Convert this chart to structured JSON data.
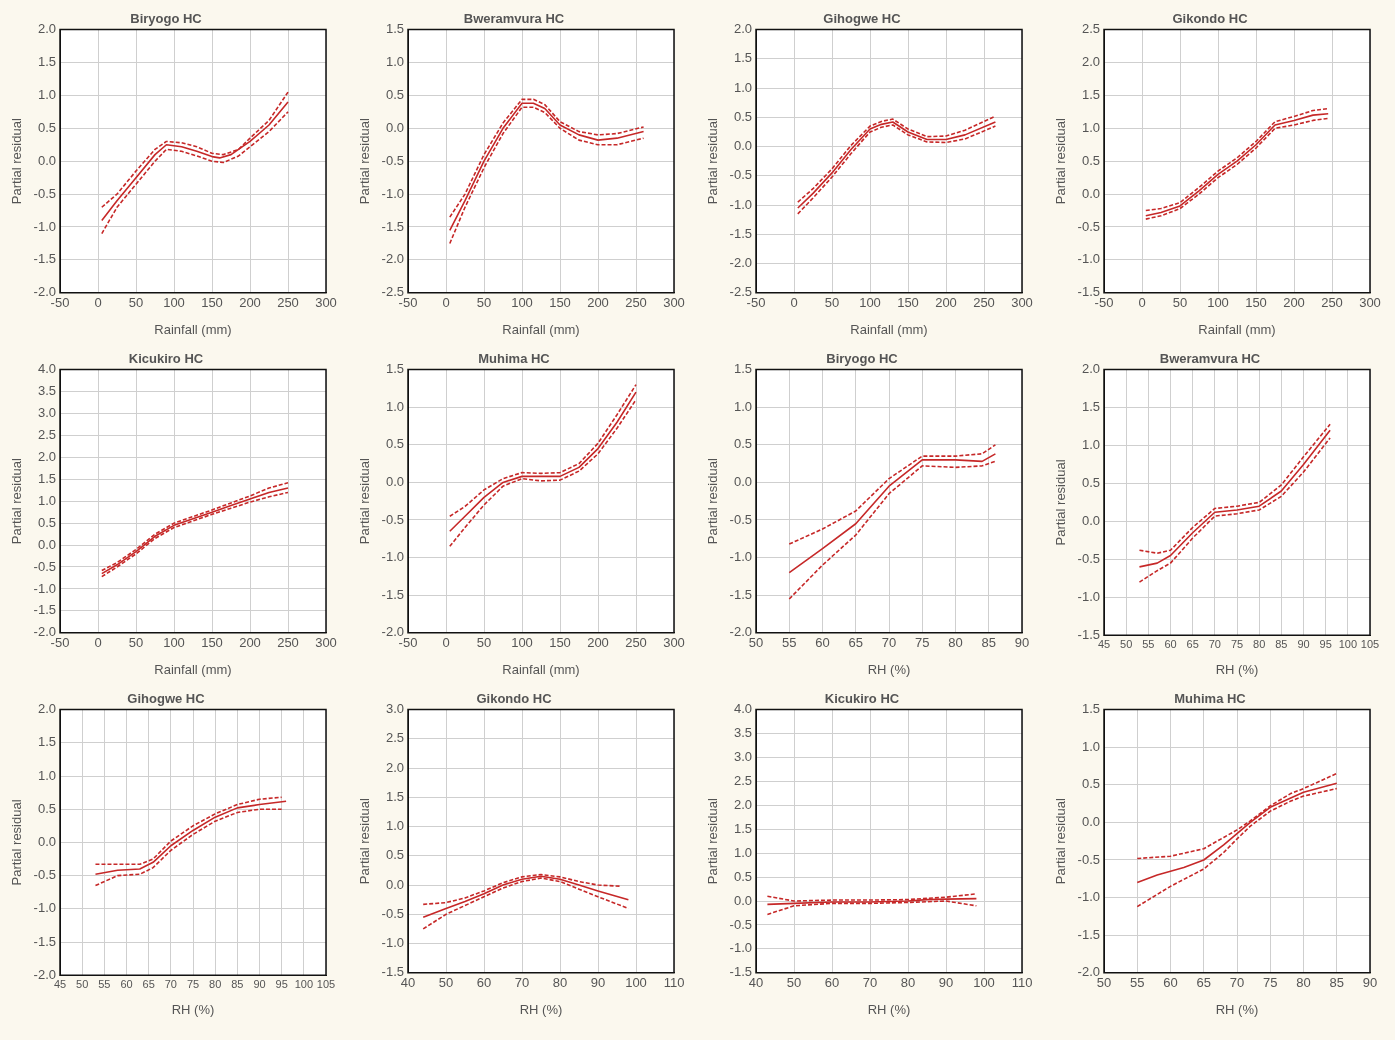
{
  "chart_data": [
    {
      "type": "line",
      "title": "Biryogo HC",
      "xlabel": "Rainfall (mm)",
      "ylabel": "Partial residual",
      "xlim": [
        -50,
        300
      ],
      "xticks": [
        -50,
        0,
        50,
        100,
        150,
        200,
        250,
        300
      ],
      "ylim": [
        -2,
        2
      ],
      "yticks": [
        {
          "value": -2,
          "label": "-2.0"
        },
        {
          "value": -1.5,
          "label": "-1.5"
        },
        {
          "value": -1,
          "label": "-1.0"
        },
        {
          "value": -0.5,
          "label": "-0.5"
        },
        {
          "value": 0,
          "label": "0.0"
        },
        {
          "value": 0.5,
          "label": "0.5"
        },
        {
          "value": 1,
          "label": "1.0"
        },
        {
          "value": 1.5,
          "label": "1.5"
        },
        {
          "value": 2,
          "label": "2.0"
        }
      ],
      "grid": true,
      "marker": "none",
      "series": [
        {
          "color": "#c62828",
          "line_style": "solid",
          "x": [
            5,
            25,
            50,
            75,
            90,
            110,
            130,
            150,
            160,
            175,
            200,
            225,
            250
          ],
          "values": [
            -0.9,
            -0.6,
            -0.25,
            0.1,
            0.25,
            0.22,
            0.15,
            0.07,
            0.05,
            0.1,
            0.3,
            0.55,
            0.9
          ]
        },
        {
          "color": "#c62828",
          "line_style": "dashed",
          "x": [
            5,
            25,
            50,
            75,
            90,
            110,
            130,
            150,
            165,
            185,
            200,
            225,
            250
          ],
          "values": [
            -1.1,
            -0.7,
            -0.35,
            0,
            0.18,
            0.15,
            0.08,
            0,
            -0.02,
            0.08,
            0.22,
            0.45,
            0.75
          ]
        },
        {
          "color": "#c62828",
          "line_style": "dashed",
          "x": [
            5,
            25,
            50,
            75,
            90,
            110,
            130,
            150,
            165,
            185,
            200,
            225,
            250
          ],
          "values": [
            -0.7,
            -0.5,
            -0.15,
            0.18,
            0.3,
            0.28,
            0.22,
            0.12,
            0.1,
            0.18,
            0.35,
            0.62,
            1.05
          ]
        }
      ]
    },
    {
      "type": "line",
      "title": "Bweramvura HC",
      "xlabel": "Rainfall (mm)",
      "ylabel": "Partial residual",
      "xlim": [
        -50,
        300
      ],
      "xticks": [
        -50,
        0,
        50,
        100,
        150,
        200,
        250,
        300
      ],
      "ylim": [
        -2.5,
        1.5
      ],
      "yticks": [
        {
          "value": -2.5,
          "label": "-2.5"
        },
        {
          "value": -2,
          "label": "-2.0"
        },
        {
          "value": -1.5,
          "label": "-1.5"
        },
        {
          "value": -1,
          "label": "-1.0"
        },
        {
          "value": -0.5,
          "label": "-0.5"
        },
        {
          "value": 0,
          "label": "0.0"
        },
        {
          "value": 0.5,
          "label": "0.5"
        },
        {
          "value": 1,
          "label": "1.0"
        },
        {
          "value": 1.5,
          "label": "1.5"
        }
      ],
      "grid": true,
      "marker": "none",
      "series": [
        {
          "color": "#c62828",
          "line_style": "solid",
          "x": [
            5,
            25,
            50,
            75,
            100,
            115,
            130,
            150,
            175,
            200,
            225,
            260
          ],
          "values": [
            -1.55,
            -1.1,
            -0.5,
            0,
            0.38,
            0.38,
            0.3,
            0.05,
            -0.1,
            -0.18,
            -0.15,
            -0.05
          ]
        },
        {
          "color": "#c62828",
          "line_style": "dashed",
          "x": [
            5,
            25,
            50,
            75,
            100,
            115,
            130,
            150,
            175,
            200,
            225,
            260
          ],
          "values": [
            -1.75,
            -1.2,
            -0.6,
            -0.08,
            0.32,
            0.32,
            0.24,
            0,
            -0.18,
            -0.25,
            -0.25,
            -0.15
          ]
        },
        {
          "color": "#c62828",
          "line_style": "dashed",
          "x": [
            5,
            25,
            50,
            75,
            100,
            115,
            130,
            150,
            175,
            200,
            225,
            260
          ],
          "values": [
            -1.35,
            -1,
            -0.4,
            0.08,
            0.44,
            0.44,
            0.36,
            0.1,
            -0.05,
            -0.1,
            -0.08,
            0.02
          ]
        }
      ]
    },
    {
      "type": "line",
      "title": "Gihogwe HC",
      "xlabel": "Rainfall (mm)",
      "ylabel": "Partial residual",
      "xlim": [
        -50,
        300
      ],
      "xticks": [
        -50,
        0,
        50,
        100,
        150,
        200,
        250,
        300
      ],
      "ylim": [
        -2.5,
        2
      ],
      "yticks": [
        {
          "value": -2.5,
          "label": "-2.5"
        },
        {
          "value": -2,
          "label": "-2.0"
        },
        {
          "value": -1.5,
          "label": "-1.5"
        },
        {
          "value": -1,
          "label": "-1.0"
        },
        {
          "value": -0.5,
          "label": "-0.5"
        },
        {
          "value": 0,
          "label": "0.0"
        },
        {
          "value": 0.5,
          "label": "0.5"
        },
        {
          "value": 1,
          "label": "1.0"
        },
        {
          "value": 1.5,
          "label": "1.5"
        },
        {
          "value": 2,
          "label": "2.0"
        }
      ],
      "grid": true,
      "marker": "none",
      "series": [
        {
          "color": "#c62828",
          "line_style": "solid",
          "x": [
            5,
            25,
            50,
            75,
            100,
            115,
            130,
            150,
            175,
            200,
            225,
            265
          ],
          "values": [
            -1.05,
            -0.8,
            -0.45,
            -0.05,
            0.3,
            0.38,
            0.42,
            0.25,
            0.12,
            0.12,
            0.2,
            0.42
          ]
        },
        {
          "color": "#c62828",
          "line_style": "dashed",
          "x": [
            5,
            25,
            50,
            75,
            100,
            115,
            130,
            150,
            175,
            200,
            225,
            265
          ],
          "values": [
            -1.15,
            -0.88,
            -0.52,
            -0.12,
            0.25,
            0.33,
            0.37,
            0.2,
            0.08,
            0.07,
            0.13,
            0.35
          ]
        },
        {
          "color": "#c62828",
          "line_style": "dashed",
          "x": [
            5,
            25,
            50,
            75,
            100,
            115,
            130,
            150,
            175,
            200,
            225,
            265
          ],
          "values": [
            -0.95,
            -0.72,
            -0.38,
            0.02,
            0.35,
            0.43,
            0.47,
            0.3,
            0.17,
            0.18,
            0.28,
            0.52
          ]
        }
      ]
    },
    {
      "type": "line",
      "title": "Gikondo HC",
      "xlabel": "Rainfall (mm)",
      "ylabel": "Partial residual",
      "xlim": [
        -50,
        300
      ],
      "xticks": [
        -50,
        0,
        50,
        100,
        150,
        200,
        250,
        300
      ],
      "ylim": [
        -1.5,
        2.5
      ],
      "yticks": [
        {
          "value": -1.5,
          "label": "-1.5"
        },
        {
          "value": -1,
          "label": "-1.0"
        },
        {
          "value": -0.5,
          "label": "-0.5"
        },
        {
          "value": 0,
          "label": "0.0"
        },
        {
          "value": 0.5,
          "label": "0.5"
        },
        {
          "value": 1,
          "label": "1.0"
        },
        {
          "value": 1.5,
          "label": "1.5"
        },
        {
          "value": 2,
          "label": "2.0"
        },
        {
          "value": 2.5,
          "label": "2.5"
        }
      ],
      "grid": true,
      "marker": "none",
      "series": [
        {
          "color": "#c62828",
          "line_style": "solid",
          "x": [
            5,
            25,
            50,
            75,
            100,
            125,
            150,
            175,
            200,
            225,
            245
          ],
          "values": [
            -0.33,
            -0.28,
            -0.18,
            0.05,
            0.3,
            0.5,
            0.75,
            1.05,
            1.12,
            1.2,
            1.22
          ]
        },
        {
          "color": "#c62828",
          "line_style": "dashed",
          "x": [
            5,
            25,
            50,
            75,
            100,
            125,
            150,
            175,
            200,
            225,
            245
          ],
          "values": [
            -0.38,
            -0.33,
            -0.22,
            0,
            0.25,
            0.45,
            0.7,
            1,
            1.05,
            1.12,
            1.15
          ]
        },
        {
          "color": "#c62828",
          "line_style": "dashed",
          "x": [
            5,
            25,
            50,
            75,
            100,
            125,
            150,
            175,
            200,
            225,
            245
          ],
          "values": [
            -0.25,
            -0.22,
            -0.13,
            0.1,
            0.35,
            0.55,
            0.8,
            1.1,
            1.18,
            1.27,
            1.3
          ]
        }
      ]
    },
    {
      "type": "line",
      "title": "Kicukiro HC",
      "xlabel": "Rainfall (mm)",
      "ylabel": "Partial residual",
      "xlim": [
        -50,
        300
      ],
      "xticks": [
        -50,
        0,
        50,
        100,
        150,
        200,
        250,
        300
      ],
      "ylim": [
        -2,
        4
      ],
      "yticks": [
        {
          "value": -2,
          "label": "-2.0"
        },
        {
          "value": -1.5,
          "label": "-1.5"
        },
        {
          "value": -1,
          "label": "-1.0"
        },
        {
          "value": -0.5,
          "label": "-0.5"
        },
        {
          "value": 0,
          "label": "0.0"
        },
        {
          "value": 0.5,
          "label": "0.5"
        },
        {
          "value": 1,
          "label": "1.0"
        },
        {
          "value": 1.5,
          "label": "1.5"
        },
        {
          "value": 2,
          "label": "2.0"
        },
        {
          "value": 2.5,
          "label": "2.5"
        },
        {
          "value": 3,
          "label": "3.0"
        },
        {
          "value": 3.5,
          "label": "3.5"
        },
        {
          "value": 4,
          "label": "4.0"
        }
      ],
      "grid": true,
      "marker": "none",
      "series": [
        {
          "color": "#c62828",
          "line_style": "solid",
          "x": [
            5,
            25,
            50,
            75,
            100,
            125,
            150,
            175,
            200,
            225,
            250
          ],
          "values": [
            -0.65,
            -0.45,
            -0.15,
            0.2,
            0.45,
            0.6,
            0.75,
            0.9,
            1.05,
            1.2,
            1.3
          ]
        },
        {
          "color": "#c62828",
          "line_style": "dashed",
          "x": [
            5,
            25,
            50,
            75,
            100,
            125,
            150,
            175,
            200,
            225,
            250
          ],
          "values": [
            -0.72,
            -0.5,
            -0.2,
            0.15,
            0.4,
            0.55,
            0.7,
            0.84,
            0.98,
            1.1,
            1.2
          ]
        },
        {
          "color": "#c62828",
          "line_style": "dashed",
          "x": [
            5,
            25,
            50,
            75,
            100,
            125,
            150,
            175,
            200,
            225,
            250
          ],
          "values": [
            -0.58,
            -0.4,
            -0.1,
            0.25,
            0.5,
            0.65,
            0.8,
            0.96,
            1.12,
            1.3,
            1.42
          ]
        }
      ]
    },
    {
      "type": "line",
      "title": "Muhima HC",
      "xlabel": "Rainfall (mm)",
      "ylabel": "Partial residual",
      "xlim": [
        -50,
        300
      ],
      "xticks": [
        -50,
        0,
        50,
        100,
        150,
        200,
        250,
        300
      ],
      "ylim": [
        -2,
        1.5
      ],
      "yticks": [
        {
          "value": -2,
          "label": "-2.0"
        },
        {
          "value": -1.5,
          "label": "-1.5"
        },
        {
          "value": -1,
          "label": "-1.0"
        },
        {
          "value": -0.5,
          "label": "-0.5"
        },
        {
          "value": 0,
          "label": "0.0"
        },
        {
          "value": 0.5,
          "label": "0.5"
        },
        {
          "value": 1,
          "label": "1.0"
        },
        {
          "value": 1.5,
          "label": "1.5"
        }
      ],
      "grid": true,
      "marker": "none",
      "series": [
        {
          "color": "#c62828",
          "line_style": "solid",
          "x": [
            5,
            25,
            50,
            75,
            100,
            125,
            150,
            175,
            200,
            225,
            250
          ],
          "values": [
            -0.65,
            -0.45,
            -0.2,
            0,
            0.08,
            0.08,
            0.08,
            0.2,
            0.45,
            0.8,
            1.2
          ]
        },
        {
          "color": "#c62828",
          "line_style": "dashed",
          "x": [
            5,
            25,
            50,
            75,
            100,
            125,
            150,
            175,
            200,
            225,
            250
          ],
          "values": [
            -0.85,
            -0.6,
            -0.3,
            -0.05,
            0.05,
            0.02,
            0.03,
            0.15,
            0.38,
            0.72,
            1.1
          ]
        },
        {
          "color": "#c62828",
          "line_style": "dashed",
          "x": [
            5,
            25,
            50,
            75,
            100,
            125,
            150,
            175,
            200,
            225,
            250
          ],
          "values": [
            -0.45,
            -0.32,
            -0.1,
            0.05,
            0.13,
            0.12,
            0.13,
            0.25,
            0.52,
            0.9,
            1.3
          ]
        }
      ]
    },
    {
      "type": "line",
      "title": "Biryogo HC",
      "xlabel": "RH (%)",
      "ylabel": "Partial residual",
      "xlim": [
        50,
        90
      ],
      "xticks": [
        50,
        55,
        60,
        65,
        70,
        75,
        80,
        85,
        90
      ],
      "ylim": [
        -2,
        1.5
      ],
      "yticks": [
        {
          "value": -2,
          "label": "-2.0"
        },
        {
          "value": -1.5,
          "label": "-1.5"
        },
        {
          "value": -1,
          "label": "-1.0"
        },
        {
          "value": -0.5,
          "label": "-0.5"
        },
        {
          "value": 0,
          "label": "0.0"
        },
        {
          "value": 0.5,
          "label": "0.5"
        },
        {
          "value": 1,
          "label": "1.0"
        },
        {
          "value": 1.5,
          "label": "1.5"
        }
      ],
      "grid": true,
      "marker": "none",
      "series": [
        {
          "color": "#c62828",
          "line_style": "solid",
          "x": [
            55,
            60,
            65,
            70,
            75,
            80,
            84,
            86
          ],
          "values": [
            -1.2,
            -0.88,
            -0.55,
            -0.05,
            0.3,
            0.3,
            0.28,
            0.38
          ]
        },
        {
          "color": "#c62828",
          "line_style": "dashed",
          "x": [
            55,
            60,
            65,
            70,
            75,
            80,
            84,
            86
          ],
          "values": [
            -1.55,
            -1.1,
            -0.7,
            -0.15,
            0.22,
            0.2,
            0.22,
            0.28
          ]
        },
        {
          "color": "#c62828",
          "line_style": "dashed",
          "x": [
            55,
            60,
            65,
            70,
            75,
            80,
            84,
            86
          ],
          "values": [
            -0.82,
            -0.62,
            -0.38,
            0.05,
            0.35,
            0.35,
            0.38,
            0.5
          ]
        }
      ]
    },
    {
      "type": "line",
      "title": "Bweramvura HC",
      "xlabel": "RH (%)",
      "ylabel": "Partial residual",
      "xlim": [
        45,
        105
      ],
      "xticks": [
        45,
        50,
        55,
        60,
        65,
        70,
        75,
        80,
        85,
        90,
        95,
        100,
        105
      ],
      "ylim": [
        -1.5,
        2
      ],
      "yticks": [
        {
          "value": -1.5,
          "label": "-1.5"
        },
        {
          "value": -1,
          "label": "-1.0"
        },
        {
          "value": -0.5,
          "label": "-0.5"
        },
        {
          "value": 0,
          "label": "0.0"
        },
        {
          "value": 0.5,
          "label": "0.5"
        },
        {
          "value": 1,
          "label": "1.0"
        },
        {
          "value": 1.5,
          "label": "1.5"
        },
        {
          "value": 2,
          "label": "2.0"
        }
      ],
      "grid": true,
      "marker": "none",
      "series": [
        {
          "color": "#c62828",
          "line_style": "solid",
          "x": [
            53,
            57,
            60,
            65,
            70,
            75,
            80,
            85,
            90,
            96
          ],
          "values": [
            -0.6,
            -0.55,
            -0.45,
            -0.15,
            0.12,
            0.15,
            0.2,
            0.4,
            0.75,
            1.2
          ]
        },
        {
          "color": "#c62828",
          "line_style": "dashed",
          "x": [
            53,
            57,
            60,
            65,
            70,
            75,
            80,
            85,
            90,
            96
          ],
          "values": [
            -0.8,
            -0.65,
            -0.55,
            -0.22,
            0.07,
            0.1,
            0.15,
            0.33,
            0.65,
            1.1
          ]
        },
        {
          "color": "#c62828",
          "line_style": "dashed",
          "x": [
            53,
            57,
            60,
            65,
            70,
            75,
            80,
            85,
            90,
            96
          ],
          "values": [
            -0.38,
            -0.42,
            -0.38,
            -0.08,
            0.17,
            0.2,
            0.25,
            0.48,
            0.85,
            1.28
          ]
        }
      ]
    },
    {
      "type": "line",
      "title": "Gihogwe HC",
      "xlabel": "RH (%)",
      "ylabel": "Partial residual",
      "xlim": [
        45,
        105
      ],
      "xticks": [
        45,
        50,
        55,
        60,
        65,
        70,
        75,
        80,
        85,
        90,
        95,
        100,
        105
      ],
      "ylim": [
        -2,
        2
      ],
      "yticks": [
        {
          "value": -2,
          "label": "-2.0"
        },
        {
          "value": -1.5,
          "label": "-1.5"
        },
        {
          "value": -1,
          "label": "-1.0"
        },
        {
          "value": -0.5,
          "label": "-0.5"
        },
        {
          "value": 0,
          "label": "0.0"
        },
        {
          "value": 0.5,
          "label": "0.5"
        },
        {
          "value": 1,
          "label": "1.0"
        },
        {
          "value": 1.5,
          "label": "1.5"
        },
        {
          "value": 2,
          "label": "2.0"
        }
      ],
      "grid": true,
      "marker": "none",
      "series": [
        {
          "color": "#c62828",
          "line_style": "solid",
          "x": [
            53,
            58,
            63,
            66,
            70,
            75,
            80,
            85,
            90,
            96
          ],
          "values": [
            -0.48,
            -0.42,
            -0.4,
            -0.3,
            -0.05,
            0.18,
            0.38,
            0.52,
            0.57,
            0.62
          ]
        },
        {
          "color": "#c62828",
          "line_style": "dashed",
          "x": [
            53,
            58,
            63,
            66,
            70,
            75,
            80,
            85,
            90,
            95
          ],
          "values": [
            -0.65,
            -0.5,
            -0.48,
            -0.38,
            -0.12,
            0.12,
            0.32,
            0.45,
            0.5,
            0.5
          ]
        },
        {
          "color": "#c62828",
          "line_style": "dashed",
          "x": [
            53,
            58,
            63,
            66,
            70,
            75,
            80,
            85,
            90,
            95
          ],
          "values": [
            -0.33,
            -0.33,
            -0.33,
            -0.25,
            0.02,
            0.25,
            0.43,
            0.57,
            0.65,
            0.68
          ]
        }
      ]
    },
    {
      "type": "line",
      "title": "Gikondo HC",
      "xlabel": "RH (%)",
      "ylabel": "Partial residual",
      "xlim": [
        40,
        110
      ],
      "xticks": [
        40,
        50,
        60,
        70,
        80,
        90,
        100,
        110
      ],
      "ylim": [
        -1.5,
        3
      ],
      "yticks": [
        {
          "value": -1.5,
          "label": "-1.5"
        },
        {
          "value": -1,
          "label": "-1.0"
        },
        {
          "value": -0.5,
          "label": "-0.5"
        },
        {
          "value": 0,
          "label": "0.0"
        },
        {
          "value": 0.5,
          "label": "0.5"
        },
        {
          "value": 1,
          "label": "1.0"
        },
        {
          "value": 1.5,
          "label": "1.5"
        },
        {
          "value": 2,
          "label": "2.0"
        },
        {
          "value": 2.5,
          "label": "2.5"
        },
        {
          "value": 3,
          "label": "3.0"
        }
      ],
      "grid": true,
      "marker": "none",
      "series": [
        {
          "color": "#c62828",
          "line_style": "solid",
          "x": [
            44,
            50,
            55,
            60,
            65,
            70,
            75,
            80,
            85,
            90,
            98
          ],
          "values": [
            -0.55,
            -0.4,
            -0.28,
            -0.15,
            0,
            0.1,
            0.15,
            0.1,
            0,
            -0.1,
            -0.25
          ]
        },
        {
          "color": "#c62828",
          "line_style": "dashed",
          "x": [
            44,
            50,
            55,
            60,
            65,
            70,
            75,
            80,
            85,
            90,
            98
          ],
          "values": [
            -0.75,
            -0.5,
            -0.35,
            -0.2,
            -0.05,
            0.06,
            0.12,
            0.06,
            -0.07,
            -0.2,
            -0.4
          ]
        },
        {
          "color": "#c62828",
          "line_style": "dashed",
          "x": [
            44,
            50,
            55,
            60,
            65,
            70,
            75,
            80,
            85,
            90,
            96
          ],
          "values": [
            -0.33,
            -0.3,
            -0.22,
            -0.1,
            0.04,
            0.14,
            0.18,
            0.14,
            0.06,
            0,
            -0.02
          ]
        }
      ]
    },
    {
      "type": "line",
      "title": "Kicukiro HC",
      "xlabel": "RH (%)",
      "ylabel": "Partial residual",
      "xlim": [
        40,
        110
      ],
      "xticks": [
        40,
        50,
        60,
        70,
        80,
        90,
        100,
        110
      ],
      "ylim": [
        -1.5,
        4
      ],
      "yticks": [
        {
          "value": -1.5,
          "label": "-1.5"
        },
        {
          "value": -1,
          "label": "-1.0"
        },
        {
          "value": -0.5,
          "label": "-0.5"
        },
        {
          "value": 0,
          "label": "0.0"
        },
        {
          "value": 0.5,
          "label": "0.5"
        },
        {
          "value": 1,
          "label": "1.0"
        },
        {
          "value": 1.5,
          "label": "1.5"
        },
        {
          "value": 2,
          "label": "2.0"
        },
        {
          "value": 2.5,
          "label": "2.5"
        },
        {
          "value": 3,
          "label": "3.0"
        },
        {
          "value": 3.5,
          "label": "3.5"
        },
        {
          "value": 4,
          "label": "4.0"
        }
      ],
      "grid": true,
      "marker": "none",
      "series": [
        {
          "color": "#c62828",
          "line_style": "solid",
          "x": [
            43,
            50,
            60,
            70,
            80,
            85,
            90,
            98
          ],
          "values": [
            -0.07,
            -0.05,
            -0.02,
            -0.02,
            0,
            0.03,
            0.04,
            0.05
          ]
        },
        {
          "color": "#c62828",
          "line_style": "dashed",
          "x": [
            43,
            50,
            60,
            70,
            80,
            90,
            98
          ],
          "values": [
            -0.28,
            -0.1,
            -0.05,
            -0.05,
            -0.03,
            0,
            -0.1
          ]
        },
        {
          "color": "#c62828",
          "line_style": "dashed",
          "x": [
            43,
            50,
            60,
            70,
            80,
            90,
            98
          ],
          "values": [
            0.1,
            0,
            0.02,
            0.02,
            0.03,
            0.08,
            0.15
          ]
        }
      ]
    },
    {
      "type": "line",
      "title": "Muhima HC",
      "xlabel": "RH (%)",
      "ylabel": "Partial residual",
      "xlim": [
        50,
        90
      ],
      "xticks": [
        50,
        55,
        60,
        65,
        70,
        75,
        80,
        85,
        90
      ],
      "ylim": [
        -2,
        1.5
      ],
      "yticks": [
        {
          "value": -2,
          "label": "-2.0"
        },
        {
          "value": -1.5,
          "label": "-1.5"
        },
        {
          "value": -1,
          "label": "-1.0"
        },
        {
          "value": -0.5,
          "label": "-0.5"
        },
        {
          "value": 0,
          "label": "0.0"
        },
        {
          "value": 0.5,
          "label": "0.5"
        },
        {
          "value": 1,
          "label": "1.0"
        },
        {
          "value": 1.5,
          "label": "1.5"
        }
      ],
      "grid": true,
      "marker": "none",
      "series": [
        {
          "color": "#c62828",
          "line_style": "solid",
          "x": [
            55,
            58,
            62,
            65,
            68,
            70,
            72,
            75,
            78,
            80,
            85
          ],
          "values": [
            -0.8,
            -0.7,
            -0.6,
            -0.5,
            -0.3,
            -0.15,
            0,
            0.2,
            0.32,
            0.4,
            0.52
          ]
        },
        {
          "color": "#c62828",
          "line_style": "dashed",
          "x": [
            55,
            60,
            65,
            68,
            70,
            72,
            75,
            78,
            80,
            85
          ],
          "values": [
            -1.12,
            -0.85,
            -0.62,
            -0.4,
            -0.22,
            -0.05,
            0.15,
            0.28,
            0.35,
            0.45
          ]
        },
        {
          "color": "#c62828",
          "line_style": "dashed",
          "x": [
            55,
            60,
            65,
            68,
            70,
            72,
            75,
            78,
            80,
            85
          ],
          "values": [
            -0.48,
            -0.45,
            -0.35,
            -0.2,
            -0.1,
            0.02,
            0.22,
            0.38,
            0.45,
            0.65
          ]
        }
      ]
    }
  ]
}
